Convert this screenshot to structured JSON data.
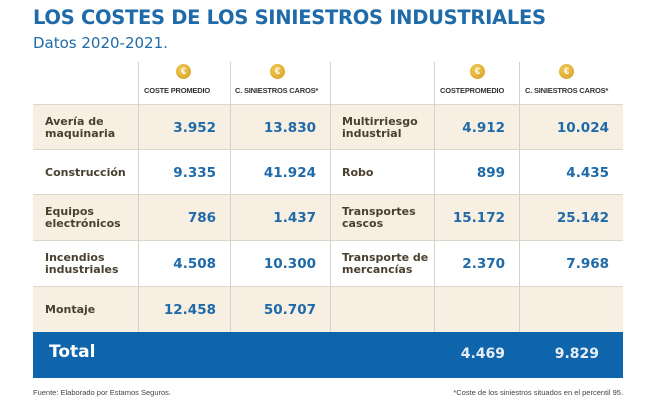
{
  "title": "LOS COSTES DE LOS SINIESTROS INDUSTRIALES",
  "subtitle": "Datos 2020-2021.",
  "coin_icon": "€",
  "headers": {
    "left": [
      "COSTE PROMEDIO",
      "C. SINIESTROS CAROS*"
    ],
    "right": [
      "COSTEPROMEDIO",
      "C. SINIESTROS CAROS*"
    ]
  },
  "rows": [
    {
      "left": {
        "name": "Avería de\nmaquinaria",
        "avg": "3.952",
        "exp": "13.830"
      },
      "right": {
        "name": "Multirriesgo\nindustrial",
        "avg": "4.912",
        "exp": "10.024"
      }
    },
    {
      "left": {
        "name": "Construcción",
        "avg": "9.335",
        "exp": "41.924"
      },
      "right": {
        "name": "Robo",
        "avg": "899",
        "exp": "4.435"
      }
    },
    {
      "left": {
        "name": "Equipos\nelectrónicos",
        "avg": "786",
        "exp": "1.437"
      },
      "right": {
        "name": "Transportes\ncascos",
        "avg": "15.172",
        "exp": "25.142"
      }
    },
    {
      "left": {
        "name": "Incendios\nindustriales",
        "avg": "4.508",
        "exp": "10.300"
      },
      "right": {
        "name": "Transporte de\nmercancías",
        "avg": "2.370",
        "exp": "7.968"
      }
    },
    {
      "left": {
        "name": "Montaje",
        "avg": "12.458",
        "exp": "50.707"
      },
      "right": {
        "name": "",
        "avg": "",
        "exp": ""
      }
    }
  ],
  "total": {
    "label": "Total",
    "avg": "4.469",
    "exp": "9.829"
  },
  "footer": {
    "source": "Fuente: Elaborado por Estamos Seguros.",
    "note": "*Coste de los siniestros situados en el percentil 95."
  }
}
